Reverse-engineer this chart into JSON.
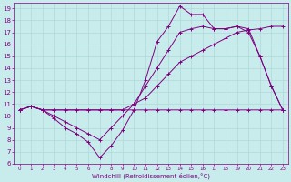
{
  "xlabel": "Windchill (Refroidissement éolien,°C)",
  "ylabel": "",
  "bg_color": "#c8ecec",
  "line_color": "#800080",
  "grid_color": "#b0d8d8",
  "xlim": [
    -0.5,
    23.5
  ],
  "ylim": [
    6,
    19.5
  ],
  "xticks": [
    0,
    1,
    2,
    3,
    4,
    5,
    6,
    7,
    8,
    9,
    10,
    11,
    12,
    13,
    14,
    15,
    16,
    17,
    18,
    19,
    20,
    21,
    22,
    23
  ],
  "yticks": [
    6,
    7,
    8,
    9,
    10,
    11,
    12,
    13,
    14,
    15,
    16,
    17,
    18,
    19
  ],
  "series": [
    {
      "x": [
        0,
        1,
        2,
        3,
        4,
        5,
        6,
        7,
        8,
        9,
        10,
        11,
        12,
        13,
        14,
        15,
        16,
        17,
        18,
        19,
        20,
        21,
        22,
        23
      ],
      "y": [
        10.5,
        10.8,
        10.5,
        10.5,
        10.5,
        10.5,
        10.5,
        10.5,
        10.5,
        10.5,
        10.5,
        10.5,
        10.5,
        10.5,
        10.5,
        10.5,
        10.5,
        10.5,
        10.5,
        10.5,
        10.5,
        10.5,
        10.5,
        10.5
      ]
    },
    {
      "x": [
        0,
        1,
        2,
        3,
        4,
        5,
        6,
        7,
        8,
        9,
        10,
        11,
        12,
        13,
        14,
        15,
        16,
        17,
        18,
        19,
        20,
        21,
        22,
        23
      ],
      "y": [
        10.5,
        10.8,
        10.5,
        10.5,
        10.5,
        10.5,
        10.5,
        10.5,
        10.5,
        10.5,
        11.0,
        11.5,
        12.5,
        13.5,
        14.5,
        15.0,
        15.5,
        16.0,
        16.5,
        17.0,
        17.2,
        17.3,
        17.5,
        17.5
      ]
    },
    {
      "x": [
        0,
        1,
        2,
        3,
        4,
        5,
        6,
        7,
        8,
        9,
        10,
        11,
        12,
        13,
        14,
        15,
        16,
        17,
        18,
        19,
        20,
        21,
        22,
        23
      ],
      "y": [
        10.5,
        10.8,
        10.5,
        10.0,
        9.5,
        9.0,
        8.5,
        8.0,
        9.0,
        10.0,
        11.0,
        12.5,
        14.0,
        15.5,
        17.0,
        17.3,
        17.5,
        17.3,
        17.3,
        17.5,
        17.3,
        15.0,
        12.5,
        10.5
      ]
    },
    {
      "x": [
        0,
        1,
        2,
        3,
        4,
        5,
        6,
        7,
        8,
        9,
        10,
        11,
        12,
        13,
        14,
        15,
        16,
        17,
        18,
        19,
        20,
        21,
        22,
        23
      ],
      "y": [
        10.5,
        10.8,
        10.5,
        9.8,
        9.0,
        8.5,
        7.8,
        6.5,
        7.5,
        8.8,
        10.5,
        13.0,
        16.2,
        17.5,
        19.2,
        18.5,
        18.5,
        17.3,
        17.3,
        17.5,
        17.0,
        15.0,
        12.5,
        10.5
      ]
    }
  ]
}
